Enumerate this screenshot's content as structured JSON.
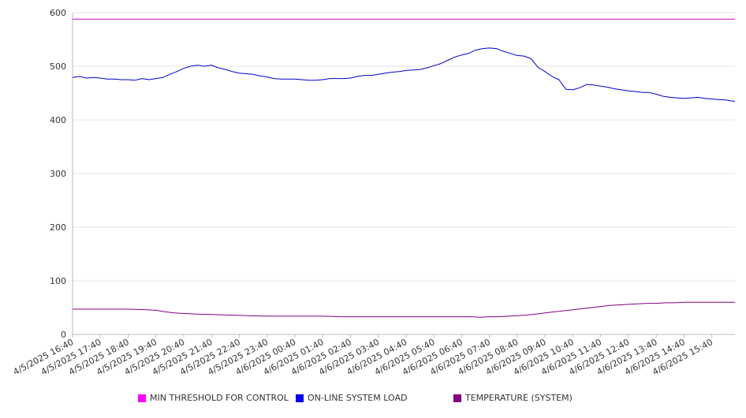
{
  "chart_data": {
    "type": "line",
    "title": "",
    "xlabel": "",
    "ylabel": "",
    "ylim": [
      0,
      600
    ],
    "yticks": [
      0,
      100,
      200,
      300,
      400,
      500,
      600
    ],
    "xlim": [
      0,
      1430
    ],
    "x_tick_labels": [
      "4/5/2025 16:40",
      "4/5/2025 17:40",
      "4/5/2025 18:40",
      "4/5/2025 19:40",
      "4/5/2025 20:40",
      "4/5/2025 21:40",
      "4/5/2025 22:40",
      "4/5/2025 23:40",
      "4/6/2025 00:40",
      "4/6/2025 01:40",
      "4/6/2025 02:40",
      "4/6/2025 03:40",
      "4/6/2025 04:40",
      "4/6/2025 05:40",
      "4/6/2025 06:40",
      "4/6/2025 07:40",
      "4/6/2025 08:40",
      "4/6/2025 09:40",
      "4/6/2025 10:40",
      "4/6/2025 11:40",
      "4/6/2025 12:40",
      "4/6/2025 13:40",
      "4/6/2025 14:40",
      "4/6/2025 15:40"
    ],
    "x_tick_minutes": [
      0,
      60,
      120,
      180,
      240,
      300,
      360,
      420,
      480,
      540,
      600,
      660,
      720,
      780,
      840,
      900,
      960,
      1020,
      1080,
      1140,
      1200,
      1260,
      1320,
      1380
    ],
    "grid": true,
    "legend_position": "bottom",
    "series": [
      {
        "name": "MIN THRESHOLD FOR CONTROL",
        "color": "#cc00cc",
        "swatch_color": "#ff00ff",
        "x": [
          0,
          1430
        ],
        "y": [
          588,
          588
        ]
      },
      {
        "name": "ON-LINE SYSTEM LOAD",
        "color": "#0000cc",
        "swatch_color": "#0000ee",
        "x": [
          0,
          15,
          30,
          45,
          60,
          75,
          90,
          105,
          120,
          135,
          150,
          165,
          180,
          195,
          210,
          225,
          240,
          255,
          270,
          285,
          300,
          315,
          330,
          345,
          360,
          375,
          390,
          405,
          420,
          435,
          450,
          465,
          480,
          495,
          510,
          525,
          540,
          555,
          570,
          585,
          600,
          615,
          630,
          645,
          660,
          675,
          690,
          705,
          720,
          735,
          750,
          765,
          780,
          795,
          810,
          825,
          840,
          855,
          870,
          885,
          900,
          915,
          930,
          945,
          960,
          975,
          990,
          1005,
          1020,
          1035,
          1050,
          1065,
          1080,
          1095,
          1110,
          1125,
          1140,
          1155,
          1170,
          1185,
          1200,
          1215,
          1230,
          1245,
          1260,
          1275,
          1290,
          1305,
          1320,
          1335,
          1350,
          1365,
          1380,
          1395,
          1410,
          1425,
          1430
        ],
        "y": [
          479,
          481,
          478,
          479,
          478,
          476,
          476,
          475,
          475,
          474,
          477,
          475,
          477,
          479,
          485,
          490,
          496,
          500,
          502,
          500,
          502,
          497,
          494,
          490,
          487,
          486,
          485,
          482,
          480,
          477,
          476,
          476,
          476,
          475,
          474,
          474,
          475,
          477,
          477,
          477,
          478,
          481,
          483,
          483,
          485,
          487,
          489,
          490,
          492,
          493,
          494,
          497,
          501,
          505,
          511,
          517,
          521,
          524,
          530,
          533,
          534,
          533,
          528,
          524,
          520,
          519,
          514,
          498,
          490,
          481,
          475,
          457,
          456,
          460,
          466,
          465,
          463,
          461,
          458,
          456,
          454,
          453,
          451,
          451,
          448,
          444,
          442,
          441,
          440,
          441,
          442,
          440,
          439,
          438,
          437,
          435,
          435
        ]
      },
      {
        "name": "TEMPERATURE (SYSTEM)",
        "color": "#800080",
        "swatch_color": "#800080",
        "x": [
          0,
          40,
          80,
          120,
          160,
          180,
          200,
          220,
          240,
          270,
          300,
          340,
          380,
          420,
          460,
          500,
          540,
          580,
          620,
          660,
          700,
          740,
          780,
          820,
          860,
          880,
          900,
          920,
          940,
          960,
          980,
          1000,
          1020,
          1040,
          1060,
          1080,
          1100,
          1120,
          1140,
          1160,
          1180,
          1200,
          1220,
          1240,
          1260,
          1280,
          1300,
          1320,
          1340,
          1360,
          1380,
          1400,
          1430
        ],
        "y": [
          47,
          47,
          47,
          47,
          46,
          45,
          42,
          40,
          39,
          38,
          37,
          36,
          35,
          34,
          34,
          34,
          34,
          33,
          33,
          33,
          33,
          33,
          33,
          33,
          33,
          32,
          33,
          33,
          34,
          35,
          36,
          38,
          40,
          42,
          44,
          46,
          48,
          50,
          52,
          54,
          55,
          56,
          57,
          58,
          58,
          59,
          59,
          60,
          60,
          60,
          60,
          60,
          60
        ]
      }
    ]
  }
}
